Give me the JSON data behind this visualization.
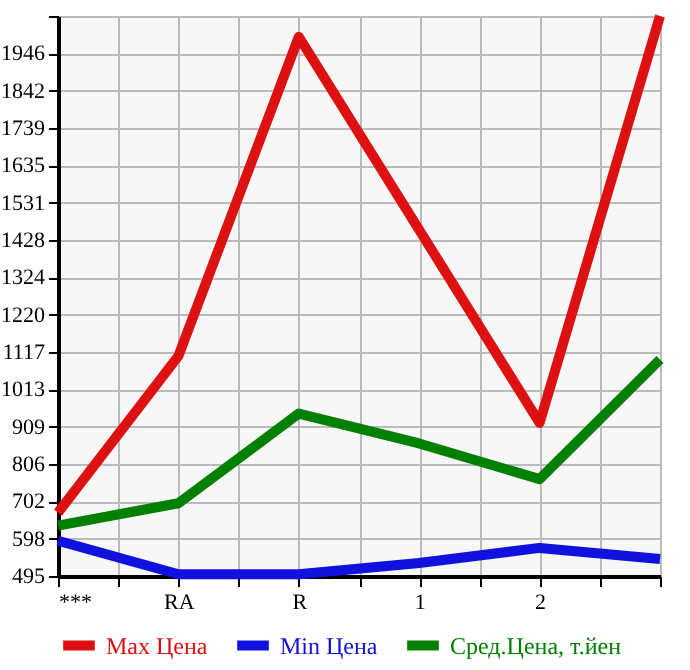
{
  "chart_data": {
    "type": "line",
    "categories": [
      "***",
      "RA",
      "R",
      "1",
      "2",
      null
    ],
    "series": [
      {
        "name": "Max Цена",
        "color": "#dd1111",
        "values": [
          671,
          1106,
          1992,
          1456,
          920,
          2050
        ]
      },
      {
        "name": "Min Цена",
        "color": "#1111dd",
        "values": [
          593,
          500,
          500,
          531,
          573,
          542
        ]
      },
      {
        "name": "Сред.Цена, т.йен",
        "color": "#008000",
        "values": [
          635,
          697,
          946,
          863,
          764,
          1096
        ]
      }
    ],
    "ylim": [
      495,
      2050
    ],
    "yticks": [
      495,
      598,
      702,
      806,
      909,
      1013,
      1117,
      1220,
      1324,
      1428,
      1531,
      1635,
      1739,
      1842,
      1946,
      {
        "value": 2050,
        "label": null
      }
    ],
    "grid": true,
    "legend": "bottom",
    "marker": "none",
    "line_style": "solid"
  }
}
